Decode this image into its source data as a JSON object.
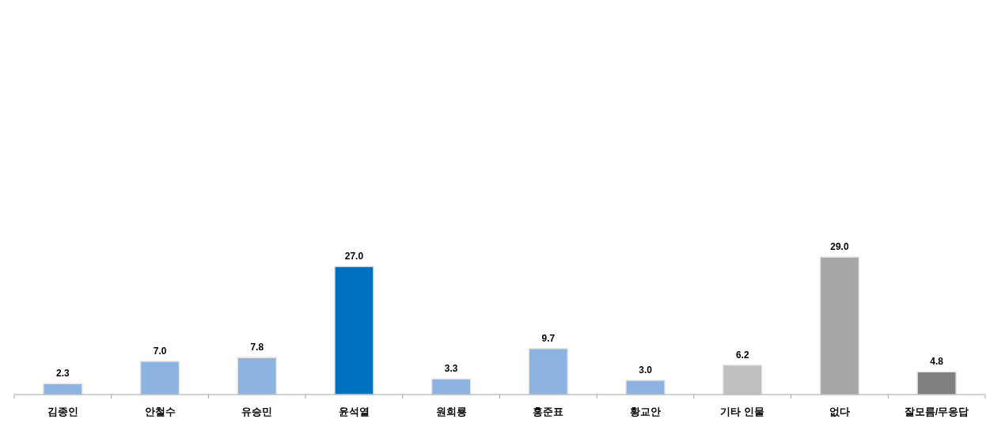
{
  "chart_data": {
    "type": "bar",
    "categories": [
      "김종인",
      "안철수",
      "유승민",
      "윤석열",
      "원희룡",
      "홍준표",
      "황교안",
      "기타 인물",
      "없다",
      "잘모름/무응답"
    ],
    "values": [
      2.3,
      7.0,
      7.8,
      27.0,
      3.3,
      9.7,
      3.0,
      6.2,
      29.0,
      4.8
    ],
    "value_labels": [
      "2.3",
      "7.0",
      "7.8",
      "27.0",
      "3.3",
      "9.7",
      "3.0",
      "6.2",
      "29.0",
      "4.8"
    ],
    "colors": [
      "#8db3e2",
      "#8db3e2",
      "#8db3e2",
      "#0070c0",
      "#8db3e2",
      "#8db3e2",
      "#8db3e2",
      "#bfbfbf",
      "#a6a6a6",
      "#7f7f7f"
    ]
  }
}
